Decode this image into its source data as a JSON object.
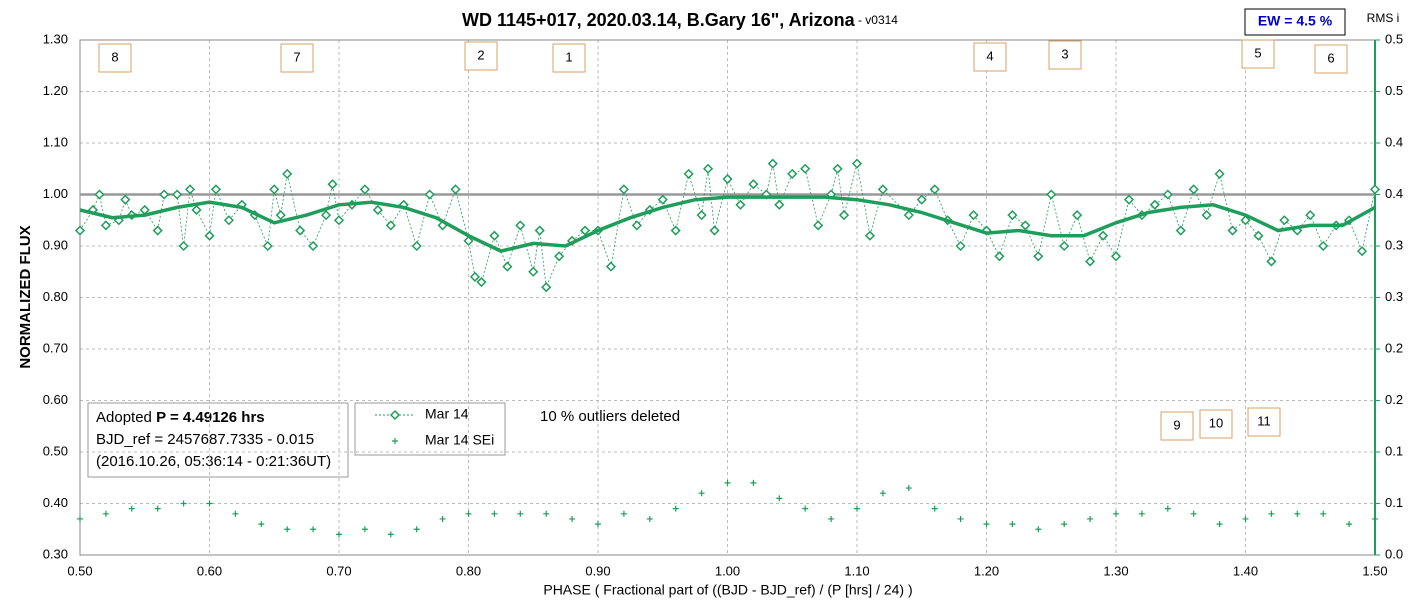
{
  "chart_data": {
    "type": "scatter",
    "title": "WD 1145+017, 2020.03.14, B.Gary 16\", Arizona",
    "title_suffix": " - v0314",
    "badge": "EW = 4.5 %",
    "y2_label": "RMS i",
    "x_label": "PHASE ( Fractional part of ((BJD - BJD_ref) / (P [hrs] / 24) )",
    "y_label": "NORMALIZED FLUX",
    "note": "10 % outliers deleted",
    "info": {
      "prefix": "Adopted ",
      "period": "P = 4.49126 hrs",
      "ref": "BJD_ref = 2457687.7335 - 0.015",
      "date": "(2016.10.26, 05:36:14 - 0:21:36UT)"
    },
    "markers": [
      "8",
      "7",
      "2",
      "1",
      "4",
      "3",
      "5",
      "6",
      "9",
      "10",
      "11"
    ],
    "ref_line": 1.0,
    "grid": true,
    "xlim": [
      0.5,
      1.5
    ],
    "ylim": [
      0.3,
      1.3
    ],
    "y2lim": [
      0,
      0.5
    ],
    "xticks": [
      {
        "value": 0.5,
        "label": "0.50"
      },
      {
        "value": 0.6,
        "label": "0.60"
      },
      {
        "value": 0.7,
        "label": "0.70"
      },
      {
        "value": 0.8,
        "label": "0.80"
      },
      {
        "value": 0.9,
        "label": "0.90"
      },
      {
        "value": 1.0,
        "label": "1.00"
      },
      {
        "value": 1.1,
        "label": "1.10"
      },
      {
        "value": 1.2,
        "label": "1.20"
      },
      {
        "value": 1.3,
        "label": "1.30"
      },
      {
        "value": 1.4,
        "label": "1.40"
      },
      {
        "value": 1.5,
        "label": "1.50"
      }
    ],
    "yticks": [
      {
        "value": 0.3,
        "label": "0.30"
      },
      {
        "value": 0.4,
        "label": "0.40"
      },
      {
        "value": 0.5,
        "label": "0.50"
      },
      {
        "value": 0.6,
        "label": "0.60"
      },
      {
        "value": 0.7,
        "label": "0.70"
      },
      {
        "value": 0.8,
        "label": "0.80"
      },
      {
        "value": 0.9,
        "label": "0.90"
      },
      {
        "value": 1.0,
        "label": "1.00"
      },
      {
        "value": 1.1,
        "label": "1.10"
      },
      {
        "value": 1.2,
        "label": "1.20"
      },
      {
        "value": 1.3,
        "label": "1.30"
      }
    ],
    "y2ticks": [
      {
        "value": 0,
        "label": "0.0"
      },
      {
        "value": 0.05,
        "label": "0.1"
      },
      0.1,
      {
        "value": 0.15,
        "label": "0.2"
      },
      0.2,
      {
        "value": 0.25,
        "label": "0.3"
      },
      0.3,
      {
        "value": 0.35,
        "label": "0.4"
      },
      0.4,
      {
        "value": 0.45,
        "label": "0.5"
      },
      0.5
    ],
    "series": [
      {
        "name": "Mar 14",
        "color": "#1f9d5b",
        "marker": "diamond",
        "x": [
          0.5,
          0.51,
          0.515,
          0.52,
          0.53,
          0.535,
          0.54,
          0.55,
          0.56,
          0.565,
          0.575,
          0.58,
          0.585,
          0.59,
          0.6,
          0.605,
          0.615,
          0.625,
          0.635,
          0.645,
          0.65,
          0.655,
          0.66,
          0.67,
          0.68,
          0.69,
          0.695,
          0.7,
          0.71,
          0.72,
          0.73,
          0.74,
          0.75,
          0.76,
          0.77,
          0.78,
          0.79,
          0.8,
          0.805,
          0.81,
          0.82,
          0.83,
          0.84,
          0.85,
          0.855,
          0.86,
          0.87,
          0.88,
          0.89,
          0.9,
          0.91,
          0.92,
          0.93,
          0.94,
          0.95,
          0.96,
          0.97,
          0.98,
          0.985,
          0.99,
          1.0,
          1.01,
          1.02,
          1.03,
          1.035,
          1.04,
          1.05,
          1.06,
          1.07,
          1.08,
          1.085,
          1.09,
          1.1,
          1.11,
          1.12,
          1.14,
          1.15,
          1.16,
          1.17,
          1.18,
          1.19,
          1.2,
          1.21,
          1.22,
          1.23,
          1.24,
          1.25,
          1.26,
          1.27,
          1.28,
          1.29,
          1.3,
          1.31,
          1.32,
          1.33,
          1.34,
          1.35,
          1.36,
          1.37,
          1.38,
          1.39,
          1.4,
          1.41,
          1.42,
          1.43,
          1.44,
          1.45,
          1.46,
          1.47,
          1.48,
          1.49,
          1.5
        ],
        "values": [
          0.93,
          0.97,
          1.0,
          0.94,
          0.95,
          0.99,
          0.96,
          0.97,
          0.93,
          1.0,
          1.0,
          0.9,
          1.01,
          0.97,
          0.92,
          1.01,
          0.95,
          0.98,
          0.96,
          0.9,
          1.01,
          0.96,
          1.04,
          0.93,
          0.9,
          0.96,
          1.02,
          0.95,
          0.98,
          1.01,
          0.97,
          0.94,
          0.98,
          0.9,
          1.0,
          0.94,
          1.01,
          0.91,
          0.84,
          0.83,
          0.92,
          0.86,
          0.94,
          0.85,
          0.93,
          0.82,
          0.88,
          0.91,
          0.93,
          0.93,
          0.86,
          1.01,
          0.94,
          0.97,
          0.99,
          0.93,
          1.04,
          0.96,
          1.05,
          0.93,
          1.03,
          0.98,
          1.02,
          1.0,
          1.06,
          0.98,
          1.04,
          1.05,
          0.94,
          1.0,
          1.05,
          0.96,
          1.06,
          0.92,
          1.01,
          0.96,
          0.99,
          1.01,
          0.95,
          0.9,
          0.96,
          0.93,
          0.88,
          0.96,
          0.94,
          0.88,
          1.0,
          0.9,
          0.96,
          0.87,
          0.92,
          0.88,
          0.99,
          0.96,
          0.98,
          1.0,
          0.93,
          1.01,
          0.96,
          1.04,
          0.93,
          0.95,
          0.92,
          0.87,
          0.95,
          0.93,
          0.96,
          0.9,
          0.94,
          0.95,
          0.89,
          1.01
        ]
      },
      {
        "color": "#1f9d5b",
        "marker": "line",
        "x": [
          0.5,
          0.525,
          0.55,
          0.575,
          0.6,
          0.625,
          0.65,
          0.675,
          0.7,
          0.725,
          0.75,
          0.775,
          0.8,
          0.825,
          0.85,
          0.875,
          0.9,
          0.925,
          0.95,
          0.975,
          1.0,
          1.025,
          1.05,
          1.075,
          1.1,
          1.125,
          1.15,
          1.175,
          1.2,
          1.225,
          1.25,
          1.275,
          1.3,
          1.325,
          1.35,
          1.375,
          1.4,
          1.425,
          1.45,
          1.475,
          1.5
        ],
        "values": [
          0.97,
          0.955,
          0.96,
          0.975,
          0.985,
          0.975,
          0.945,
          0.96,
          0.98,
          0.985,
          0.975,
          0.955,
          0.92,
          0.89,
          0.905,
          0.9,
          0.93,
          0.955,
          0.975,
          0.99,
          0.995,
          0.995,
          0.995,
          0.995,
          0.99,
          0.98,
          0.965,
          0.945,
          0.925,
          0.93,
          0.92,
          0.92,
          0.945,
          0.965,
          0.975,
          0.98,
          0.96,
          0.93,
          0.94,
          0.94,
          0.975
        ]
      },
      {
        "name": "Mar 14 SEi",
        "color": "#1f9d5b",
        "marker": "plus",
        "axis": "y2",
        "x": [
          0.5,
          0.52,
          0.54,
          0.56,
          0.58,
          0.6,
          0.62,
          0.64,
          0.66,
          0.68,
          0.7,
          0.72,
          0.74,
          0.76,
          0.78,
          0.8,
          0.82,
          0.84,
          0.86,
          0.88,
          0.9,
          0.92,
          0.94,
          0.96,
          0.98,
          1.0,
          1.02,
          1.04,
          1.06,
          1.08,
          1.1,
          1.12,
          1.14,
          1.16,
          1.18,
          1.2,
          1.22,
          1.24,
          1.26,
          1.28,
          1.3,
          1.32,
          1.34,
          1.36,
          1.38,
          1.4,
          1.42,
          1.44,
          1.46,
          1.48,
          1.5
        ],
        "values": [
          0.035,
          0.04,
          0.045,
          0.045,
          0.05,
          0.05,
          0.04,
          0.03,
          0.025,
          0.025,
          0.02,
          0.025,
          0.02,
          0.025,
          0.035,
          0.04,
          0.04,
          0.04,
          0.04,
          0.035,
          0.03,
          0.04,
          0.035,
          0.045,
          0.06,
          0.07,
          0.07,
          0.055,
          0.045,
          0.035,
          0.045,
          0.06,
          0.065,
          0.045,
          0.035,
          0.03,
          0.03,
          0.025,
          0.03,
          0.035,
          0.04,
          0.04,
          0.045,
          0.04,
          0.03,
          0.035,
          0.04,
          0.04,
          0.04,
          0.03,
          0.035
        ]
      }
    ]
  }
}
